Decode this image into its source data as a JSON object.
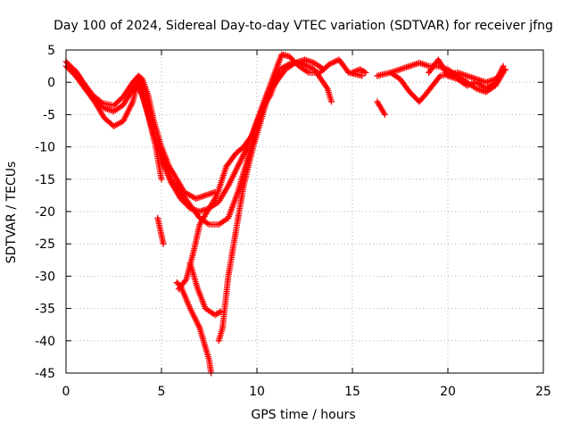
{
  "chart_data": {
    "type": "scatter",
    "title": "Day 100 of 2024, Sidereal Day-to-day VTEC variation (SDTVAR) for receiver jfng",
    "xlabel": "GPS time / hours",
    "ylabel": "SDTVAR / TECUs",
    "xlim": [
      0,
      25
    ],
    "ylim": [
      -45,
      5
    ],
    "x_ticks": [
      0,
      5,
      10,
      15,
      20,
      25
    ],
    "y_ticks": [
      5,
      0,
      -5,
      -10,
      -15,
      -20,
      -25,
      -30,
      -35,
      -40,
      -45
    ],
    "grid": true,
    "marker": "plus",
    "color": "#ff0000",
    "series": [
      {
        "name": "arc-1",
        "points": [
          [
            0,
            3.2
          ],
          [
            0.4,
            2
          ],
          [
            0.9,
            0
          ],
          [
            1.4,
            -2
          ],
          [
            1.9,
            -3.2
          ],
          [
            2.5,
            -3.6
          ],
          [
            3.0,
            -2.2
          ],
          [
            3.5,
            0
          ],
          [
            3.8,
            1
          ],
          [
            4.0,
            0.5
          ],
          [
            4.3,
            -2
          ],
          [
            4.6,
            -6
          ],
          [
            5.0,
            -10
          ],
          [
            5.4,
            -13
          ],
          [
            5.8,
            -15
          ],
          [
            6.2,
            -17
          ],
          [
            6.8,
            -18
          ],
          [
            7.3,
            -17.5
          ],
          [
            7.8,
            -17
          ]
        ]
      },
      {
        "name": "arc-2",
        "points": [
          [
            0,
            2.5
          ],
          [
            0.5,
            1
          ],
          [
            1.0,
            -1
          ],
          [
            1.5,
            -3
          ],
          [
            2.0,
            -4
          ],
          [
            2.5,
            -4.5
          ],
          [
            3.0,
            -3.5
          ],
          [
            3.5,
            -1
          ],
          [
            3.7,
            0.5
          ],
          [
            4.0,
            -0.5
          ],
          [
            4.2,
            -3
          ],
          [
            4.6,
            -8
          ],
          [
            5.0,
            -12
          ],
          [
            5.5,
            -15.5
          ],
          [
            6.0,
            -18
          ],
          [
            6.5,
            -19.5
          ],
          [
            7.0,
            -20
          ],
          [
            7.5,
            -19.5
          ],
          [
            8.0,
            -18.5
          ],
          [
            8.5,
            -16
          ],
          [
            9.0,
            -13
          ],
          [
            9.5,
            -10
          ],
          [
            10.0,
            -6
          ],
          [
            10.5,
            -2
          ],
          [
            11.0,
            0
          ],
          [
            11.5,
            2
          ],
          [
            12.0,
            3
          ],
          [
            12.5,
            3.5
          ],
          [
            13.0,
            3
          ],
          [
            13.5,
            2
          ]
        ]
      },
      {
        "name": "arc-3",
        "points": [
          [
            0.5,
            1.8
          ],
          [
            1.0,
            -0.5
          ],
          [
            1.5,
            -3
          ],
          [
            2.0,
            -5.5
          ],
          [
            2.5,
            -6.8
          ],
          [
            3.0,
            -6
          ],
          [
            3.5,
            -3
          ],
          [
            3.7,
            -0.5
          ],
          [
            4.0,
            -2
          ],
          [
            4.3,
            -5
          ],
          [
            4.7,
            -10
          ],
          [
            5.0,
            -15
          ]
        ]
      },
      {
        "name": "arc-4",
        "points": [
          [
            3.5,
            0
          ],
          [
            3.9,
            -1
          ],
          [
            4.2,
            -4
          ],
          [
            4.6,
            -8
          ],
          [
            5.1,
            -12
          ],
          [
            5.5,
            -15
          ],
          [
            6.0,
            -17
          ],
          [
            6.5,
            -19
          ],
          [
            7.0,
            -21
          ],
          [
            7.5,
            -22
          ],
          [
            8.0,
            -22
          ],
          [
            8.5,
            -21
          ],
          [
            9.0,
            -17
          ],
          [
            9.5,
            -12
          ],
          [
            10.0,
            -7
          ],
          [
            10.5,
            -2
          ],
          [
            11.0,
            2
          ],
          [
            11.3,
            4.3
          ],
          [
            11.7,
            4
          ],
          [
            12.2,
            2.5
          ],
          [
            12.7,
            1.5
          ],
          [
            13.3,
            1.5
          ],
          [
            13.8,
            2.8
          ],
          [
            14.3,
            3.5
          ],
          [
            14.8,
            1.5
          ],
          [
            15.5,
            1
          ]
        ]
      },
      {
        "name": "arc-5",
        "points": [
          [
            4.8,
            -21
          ],
          [
            5.1,
            -25
          ]
        ]
      },
      {
        "name": "arc-6",
        "points": [
          [
            5.8,
            -31
          ],
          [
            6.0,
            -31.5
          ]
        ]
      },
      {
        "name": "arc-7",
        "points": [
          [
            5.9,
            -32
          ],
          [
            6.3,
            -30.5
          ],
          [
            6.7,
            -26
          ],
          [
            7.0,
            -22
          ],
          [
            7.4,
            -20
          ],
          [
            7.9,
            -17.5
          ],
          [
            8.4,
            -13
          ],
          [
            8.9,
            -11
          ],
          [
            9.3,
            -10
          ],
          [
            9.8,
            -8
          ],
          [
            10.3,
            -4
          ],
          [
            10.7,
            -2
          ],
          [
            11.1,
            1
          ]
        ]
      },
      {
        "name": "arc-8",
        "points": [
          [
            6.0,
            -31.5
          ],
          [
            6.5,
            -35
          ],
          [
            7.0,
            -38
          ],
          [
            7.3,
            -41
          ],
          [
            7.5,
            -43
          ],
          [
            7.6,
            -45
          ]
        ]
      },
      {
        "name": "arc-9",
        "points": [
          [
            6.5,
            -28
          ],
          [
            6.9,
            -32
          ],
          [
            7.3,
            -35
          ],
          [
            7.8,
            -36
          ],
          [
            8.1,
            -35.5
          ]
        ]
      },
      {
        "name": "arc-10",
        "points": [
          [
            8.0,
            -40
          ],
          [
            8.2,
            -38
          ],
          [
            8.5,
            -30
          ],
          [
            8.9,
            -23
          ],
          [
            9.3,
            -16
          ],
          [
            9.8,
            -10
          ],
          [
            10.3,
            -5
          ],
          [
            10.7,
            -1
          ],
          [
            11.2,
            2
          ],
          [
            11.8,
            3
          ],
          [
            12.3,
            3
          ],
          [
            13.0,
            2
          ],
          [
            13.7,
            -1
          ],
          [
            13.9,
            -3
          ]
        ]
      },
      {
        "name": "arc-11",
        "points": [
          [
            16.3,
            -3
          ],
          [
            16.7,
            -5
          ]
        ]
      },
      {
        "name": "arc-12",
        "points": [
          [
            15.0,
            1.5
          ],
          [
            15.4,
            2
          ],
          [
            15.7,
            1.5
          ]
        ]
      },
      {
        "name": "arc-13",
        "points": [
          [
            16.3,
            1
          ],
          [
            17,
            1.5
          ],
          [
            17.5,
            2
          ],
          [
            18,
            2.5
          ],
          [
            18.5,
            3
          ],
          [
            19.0,
            2.5
          ],
          [
            19.5,
            2.5
          ],
          [
            20,
            2
          ],
          [
            20.5,
            1
          ],
          [
            21,
            0
          ],
          [
            21.5,
            -1
          ],
          [
            22.0,
            -1.5
          ],
          [
            22.5,
            -0.5
          ],
          [
            23.0,
            2
          ]
        ]
      },
      {
        "name": "arc-14",
        "points": [
          [
            17.0,
            1.5
          ],
          [
            17.5,
            0.5
          ],
          [
            18.0,
            -1.5
          ],
          [
            18.5,
            -3
          ],
          [
            18.8,
            -2
          ],
          [
            19.2,
            -0.5
          ],
          [
            19.6,
            1
          ],
          [
            20,
            1.2
          ],
          [
            20.5,
            1.5
          ],
          [
            21,
            1
          ],
          [
            21.5,
            0.5
          ],
          [
            22,
            0
          ],
          [
            22.5,
            0.5
          ],
          [
            23,
            2
          ]
        ]
      },
      {
        "name": "arc-15",
        "points": [
          [
            19.0,
            1.5
          ],
          [
            19.5,
            3.5
          ],
          [
            20.0,
            1
          ],
          [
            20.5,
            0.5
          ],
          [
            21.0,
            -0.5
          ],
          [
            21.5,
            0
          ],
          [
            22.0,
            -1
          ],
          [
            22.5,
            0
          ],
          [
            22.9,
            2.5
          ]
        ]
      }
    ]
  }
}
